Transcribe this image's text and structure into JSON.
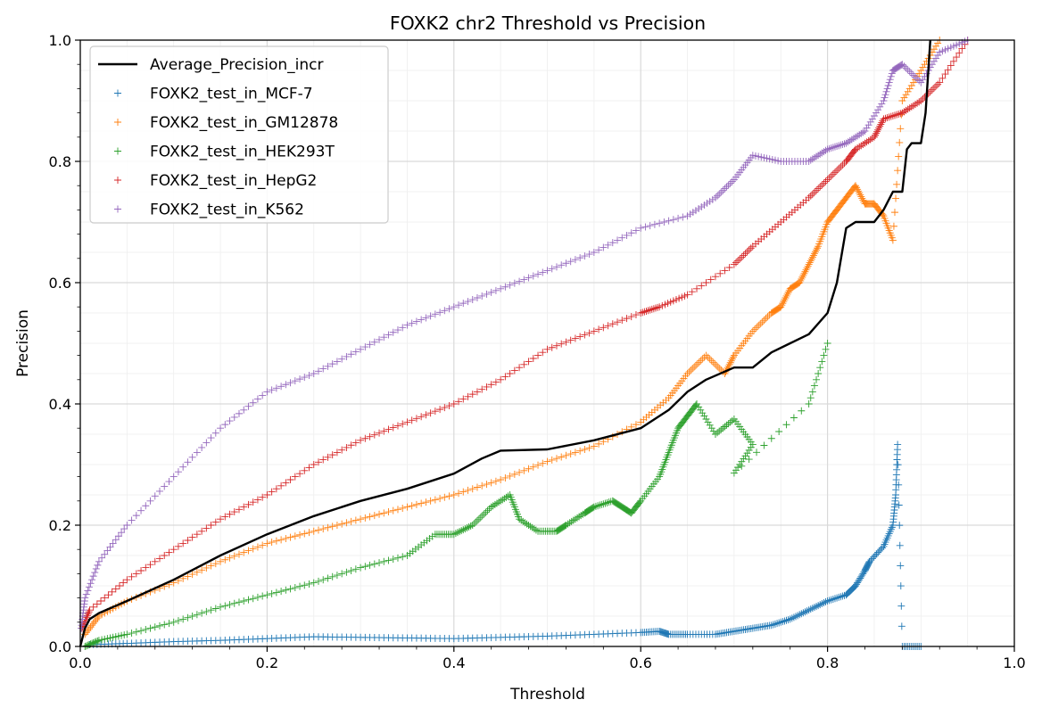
{
  "chart_data": {
    "type": "line",
    "title": "FOXK2 chr2 Threshold vs Precision",
    "xlabel": "Threshold",
    "ylabel": "Precision",
    "xlim": [
      0.0,
      1.0
    ],
    "ylim": [
      0.0,
      1.0
    ],
    "xticks": [
      "0.0",
      "0.2",
      "0.4",
      "0.6",
      "0.8",
      "1.0"
    ],
    "yticks": [
      "0.0",
      "0.2",
      "0.4",
      "0.6",
      "0.8",
      "1.0"
    ],
    "grid": true,
    "legend_position": "top-left",
    "series": [
      {
        "name": "Average_Precision_incr",
        "kind": "line",
        "color": "#000000",
        "points": [
          [
            0.0,
            0.0
          ],
          [
            0.005,
            0.03
          ],
          [
            0.01,
            0.045
          ],
          [
            0.02,
            0.055
          ],
          [
            0.05,
            0.075
          ],
          [
            0.1,
            0.11
          ],
          [
            0.15,
            0.15
          ],
          [
            0.2,
            0.185
          ],
          [
            0.25,
            0.215
          ],
          [
            0.3,
            0.24
          ],
          [
            0.35,
            0.26
          ],
          [
            0.4,
            0.285
          ],
          [
            0.43,
            0.31
          ],
          [
            0.45,
            0.323
          ],
          [
            0.5,
            0.325
          ],
          [
            0.55,
            0.34
          ],
          [
            0.6,
            0.36
          ],
          [
            0.63,
            0.39
          ],
          [
            0.65,
            0.42
          ],
          [
            0.67,
            0.44
          ],
          [
            0.7,
            0.46
          ],
          [
            0.72,
            0.46
          ],
          [
            0.74,
            0.485
          ],
          [
            0.76,
            0.5
          ],
          [
            0.78,
            0.515
          ],
          [
            0.8,
            0.55
          ],
          [
            0.81,
            0.6
          ],
          [
            0.82,
            0.69
          ],
          [
            0.83,
            0.7
          ],
          [
            0.85,
            0.7
          ],
          [
            0.86,
            0.72
          ],
          [
            0.87,
            0.75
          ],
          [
            0.88,
            0.75
          ],
          [
            0.885,
            0.82
          ],
          [
            0.89,
            0.83
          ],
          [
            0.9,
            0.83
          ],
          [
            0.905,
            0.88
          ],
          [
            0.91,
            1.0
          ]
        ]
      },
      {
        "name": "FOXK2_test_in_MCF-7",
        "kind": "scatter",
        "color": "#1f77b4",
        "points": [
          [
            0.01,
            0.003
          ],
          [
            0.05,
            0.005
          ],
          [
            0.1,
            0.008
          ],
          [
            0.15,
            0.01
          ],
          [
            0.2,
            0.013
          ],
          [
            0.25,
            0.016
          ],
          [
            0.3,
            0.015
          ],
          [
            0.35,
            0.014
          ],
          [
            0.4,
            0.013
          ],
          [
            0.45,
            0.015
          ],
          [
            0.5,
            0.017
          ],
          [
            0.55,
            0.02
          ],
          [
            0.6,
            0.023
          ],
          [
            0.62,
            0.025
          ],
          [
            0.63,
            0.02
          ],
          [
            0.65,
            0.02
          ],
          [
            0.68,
            0.02
          ],
          [
            0.7,
            0.025
          ],
          [
            0.72,
            0.03
          ],
          [
            0.74,
            0.035
          ],
          [
            0.76,
            0.045
          ],
          [
            0.78,
            0.06
          ],
          [
            0.8,
            0.075
          ],
          [
            0.82,
            0.085
          ],
          [
            0.83,
            0.1
          ],
          [
            0.84,
            0.125
          ],
          [
            0.845,
            0.14
          ],
          [
            0.86,
            0.165
          ],
          [
            0.87,
            0.2
          ],
          [
            0.873,
            0.25
          ],
          [
            0.875,
            0.333
          ],
          [
            0.88,
            0.0
          ],
          [
            0.9,
            0.0
          ]
        ]
      },
      {
        "name": "FOXK2_test_in_GM12878",
        "kind": "scatter",
        "color": "#ff7f0e",
        "points": [
          [
            0.005,
            0.02
          ],
          [
            0.02,
            0.05
          ],
          [
            0.05,
            0.075
          ],
          [
            0.1,
            0.105
          ],
          [
            0.15,
            0.14
          ],
          [
            0.2,
            0.17
          ],
          [
            0.25,
            0.19
          ],
          [
            0.3,
            0.21
          ],
          [
            0.35,
            0.23
          ],
          [
            0.4,
            0.25
          ],
          [
            0.45,
            0.275
          ],
          [
            0.5,
            0.305
          ],
          [
            0.55,
            0.33
          ],
          [
            0.6,
            0.37
          ],
          [
            0.63,
            0.41
          ],
          [
            0.65,
            0.45
          ],
          [
            0.67,
            0.48
          ],
          [
            0.69,
            0.45
          ],
          [
            0.7,
            0.48
          ],
          [
            0.72,
            0.52
          ],
          [
            0.74,
            0.55
          ],
          [
            0.75,
            0.56
          ],
          [
            0.76,
            0.59
          ],
          [
            0.77,
            0.6
          ],
          [
            0.78,
            0.63
          ],
          [
            0.79,
            0.66
          ],
          [
            0.8,
            0.7
          ],
          [
            0.81,
            0.72
          ],
          [
            0.82,
            0.74
          ],
          [
            0.83,
            0.76
          ],
          [
            0.84,
            0.73
          ],
          [
            0.85,
            0.73
          ],
          [
            0.86,
            0.71
          ],
          [
            0.87,
            0.67
          ],
          [
            0.88,
            0.9
          ],
          [
            0.9,
            0.95
          ],
          [
            0.92,
            1.0
          ]
        ]
      },
      {
        "name": "FOXK2_test_in_HEK293T",
        "kind": "scatter",
        "color": "#2ca02c",
        "points": [
          [
            0.005,
            0.0
          ],
          [
            0.02,
            0.01
          ],
          [
            0.05,
            0.02
          ],
          [
            0.1,
            0.04
          ],
          [
            0.15,
            0.065
          ],
          [
            0.2,
            0.085
          ],
          [
            0.25,
            0.105
          ],
          [
            0.3,
            0.13
          ],
          [
            0.35,
            0.15
          ],
          [
            0.38,
            0.185
          ],
          [
            0.4,
            0.185
          ],
          [
            0.42,
            0.2
          ],
          [
            0.44,
            0.23
          ],
          [
            0.46,
            0.25
          ],
          [
            0.47,
            0.21
          ],
          [
            0.49,
            0.19
          ],
          [
            0.51,
            0.19
          ],
          [
            0.52,
            0.2
          ],
          [
            0.54,
            0.22
          ],
          [
            0.55,
            0.23
          ],
          [
            0.57,
            0.24
          ],
          [
            0.58,
            0.23
          ],
          [
            0.59,
            0.22
          ],
          [
            0.6,
            0.24
          ],
          [
            0.62,
            0.28
          ],
          [
            0.63,
            0.32
          ],
          [
            0.64,
            0.36
          ],
          [
            0.65,
            0.38
          ],
          [
            0.66,
            0.4
          ],
          [
            0.68,
            0.35
          ],
          [
            0.7,
            0.375
          ],
          [
            0.72,
            0.333
          ],
          [
            0.7,
            0.286
          ],
          [
            0.78,
            0.4
          ],
          [
            0.8,
            0.5
          ]
        ]
      },
      {
        "name": "FOXK2_test_in_HepG2",
        "kind": "scatter",
        "color": "#d62728",
        "points": [
          [
            0.002,
            0.03
          ],
          [
            0.01,
            0.06
          ],
          [
            0.05,
            0.11
          ],
          [
            0.1,
            0.16
          ],
          [
            0.15,
            0.21
          ],
          [
            0.2,
            0.25
          ],
          [
            0.25,
            0.3
          ],
          [
            0.3,
            0.34
          ],
          [
            0.35,
            0.37
          ],
          [
            0.4,
            0.4
          ],
          [
            0.45,
            0.44
          ],
          [
            0.5,
            0.49
          ],
          [
            0.55,
            0.52
          ],
          [
            0.6,
            0.55
          ],
          [
            0.62,
            0.56
          ],
          [
            0.65,
            0.58
          ],
          [
            0.7,
            0.63
          ],
          [
            0.72,
            0.66
          ],
          [
            0.75,
            0.7
          ],
          [
            0.78,
            0.74
          ],
          [
            0.8,
            0.77
          ],
          [
            0.82,
            0.8
          ],
          [
            0.83,
            0.82
          ],
          [
            0.85,
            0.84
          ],
          [
            0.86,
            0.87
          ],
          [
            0.88,
            0.88
          ],
          [
            0.9,
            0.9
          ],
          [
            0.92,
            0.93
          ],
          [
            0.95,
            1.0
          ]
        ]
      },
      {
        "name": "FOXK2_test_in_K562",
        "kind": "scatter",
        "color": "#9467bd",
        "points": [
          [
            0.001,
            0.03
          ],
          [
            0.005,
            0.08
          ],
          [
            0.02,
            0.14
          ],
          [
            0.05,
            0.2
          ],
          [
            0.1,
            0.28
          ],
          [
            0.15,
            0.36
          ],
          [
            0.2,
            0.42
          ],
          [
            0.25,
            0.45
          ],
          [
            0.3,
            0.49
          ],
          [
            0.35,
            0.53
          ],
          [
            0.4,
            0.56
          ],
          [
            0.45,
            0.59
          ],
          [
            0.5,
            0.62
          ],
          [
            0.55,
            0.65
          ],
          [
            0.6,
            0.69
          ],
          [
            0.65,
            0.71
          ],
          [
            0.68,
            0.74
          ],
          [
            0.7,
            0.77
          ],
          [
            0.72,
            0.81
          ],
          [
            0.75,
            0.8
          ],
          [
            0.78,
            0.8
          ],
          [
            0.8,
            0.82
          ],
          [
            0.82,
            0.83
          ],
          [
            0.84,
            0.85
          ],
          [
            0.86,
            0.9
          ],
          [
            0.87,
            0.95
          ],
          [
            0.88,
            0.96
          ],
          [
            0.9,
            0.93
          ],
          [
            0.92,
            0.98
          ],
          [
            0.95,
            1.0
          ]
        ]
      }
    ]
  }
}
